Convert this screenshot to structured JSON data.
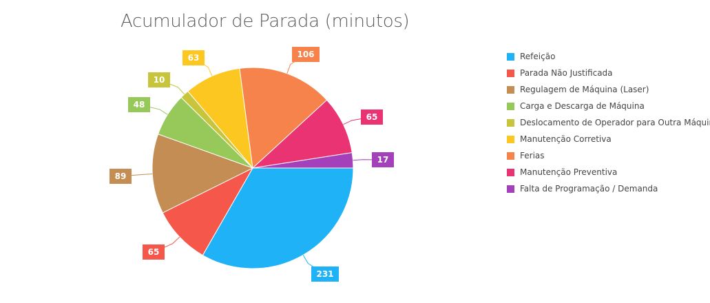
{
  "chart_data": {
    "type": "pie",
    "title": "Acumulador de Parada (minutos)",
    "legend_position": "right",
    "series": [
      {
        "name": "Refeição",
        "value": 231,
        "color": "#1FB2F6"
      },
      {
        "name": "Parada Não Justificada",
        "value": 65,
        "color": "#F5574A"
      },
      {
        "name": "Regulagem de Máquina (Laser)",
        "value": 89,
        "color": "#C48D53"
      },
      {
        "name": "Carga e Descarga de Máquina",
        "value": 48,
        "color": "#97C95A"
      },
      {
        "name": "Deslocamento de Operador para Outra Máquina",
        "value": 10,
        "color": "#C8C43C"
      },
      {
        "name": "Manutenção Corretiva",
        "value": 63,
        "color": "#FDC722"
      },
      {
        "name": "Ferias",
        "value": 106,
        "color": "#F6834B"
      },
      {
        "name": "Manutenção Preventiva",
        "value": 65,
        "color": "#EA3372"
      },
      {
        "name": "Falta de Programação / Demanda",
        "value": 17,
        "color": "#A440BA"
      }
    ]
  }
}
